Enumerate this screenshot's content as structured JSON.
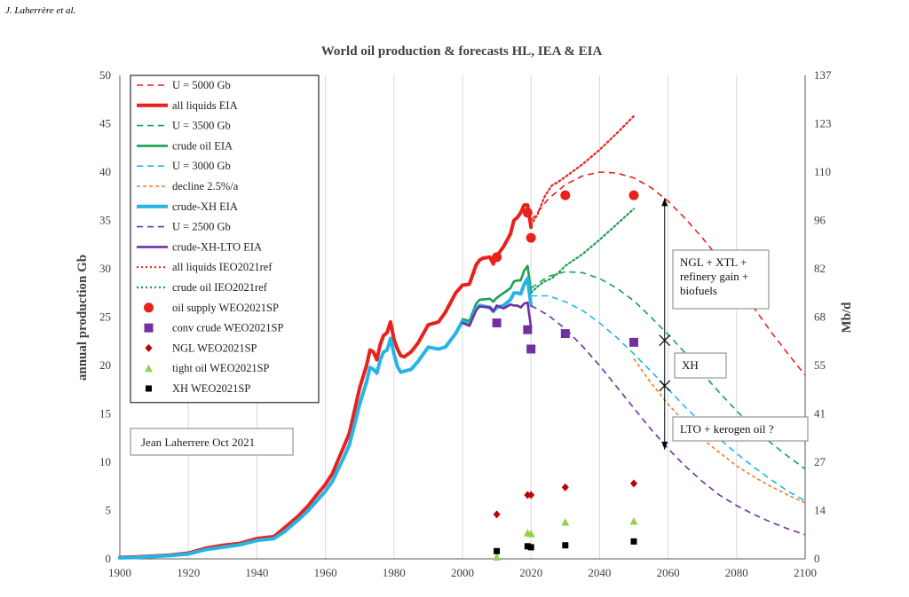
{
  "header": {
    "citation": "J. Laherrère et al."
  },
  "chart_data": {
    "type": "line",
    "title": "World oil production & forecasts HL, IEA & EIA",
    "xlabel": "",
    "ylabel": "annual production Gb",
    "y2label": "Mb/d",
    "xlim": [
      1900,
      2100
    ],
    "ylim": [
      0,
      50
    ],
    "x_ticks": [
      1900,
      1920,
      1940,
      1960,
      1980,
      2000,
      2020,
      2040,
      2060,
      2080,
      2100
    ],
    "y_ticks": [
      0,
      5,
      10,
      15,
      20,
      25,
      30,
      35,
      40,
      45,
      50
    ],
    "y2_ticks": [
      0,
      14,
      27,
      41,
      55,
      68,
      82,
      96,
      110,
      123,
      137
    ],
    "grid": "vertical",
    "legend": [
      {
        "label": "U = 5000 Gb",
        "style": "dash",
        "color": "#e8211d"
      },
      {
        "label": "all liquids EIA",
        "style": "thick",
        "color": "#e8211d"
      },
      {
        "label": "U = 3500 Gb",
        "style": "dash",
        "color": "#1aa150"
      },
      {
        "label": "crude oil  EIA",
        "style": "solid",
        "color": "#1aa150"
      },
      {
        "label": "U = 3000 Gb",
        "style": "dash",
        "color": "#26b4e8"
      },
      {
        "label": "decline 2.5%/a",
        "style": "dash-short",
        "color": "#ee7d2a"
      },
      {
        "label": "crude-XH EIA",
        "style": "thick",
        "color": "#26b4e8"
      },
      {
        "label": "U = 2500 Gb",
        "style": "dash",
        "color": "#7030a0"
      },
      {
        "label": "crude-XH-LTO EIA",
        "style": "solid",
        "color": "#7030a0"
      },
      {
        "label": "all liquids IEO2021ref",
        "style": "dot",
        "color": "#e8211d"
      },
      {
        "label": "crude oil IEO2021ref",
        "style": "dot",
        "color": "#1aa150"
      },
      {
        "label": "oil supply WEO2021SP",
        "style": "circle",
        "color": "#e8211d"
      },
      {
        "label": "conv crude WEO2021SP",
        "style": "square",
        "color": "#7030a0"
      },
      {
        "label": "NGL WEO2021SP",
        "style": "diamond",
        "color": "#c00000"
      },
      {
        "label": "tight oil WEO2021SP",
        "style": "triangle",
        "color": "#92d050"
      },
      {
        "label": "XH WEO2021SP",
        "style": "square-small",
        "color": "#000000"
      }
    ],
    "credit": "Jean Laherrere Oct 2021",
    "annotations": [
      {
        "text": [
          "NGL + XTL +",
          "refinery gain +",
          "biofuels"
        ]
      },
      {
        "text": [
          "XH"
        ]
      },
      {
        "text": [
          "LTO + kerogen oil ?"
        ]
      }
    ],
    "series": [
      {
        "name": "all liquids EIA",
        "style": "thick",
        "color": "#e8211d",
        "x": [
          1900,
          1905,
          1910,
          1915,
          1920,
          1925,
          1930,
          1935,
          1940,
          1945,
          1948,
          1950,
          1952,
          1955,
          1957,
          1960,
          1962,
          1965,
          1967,
          1970,
          1972,
          1973,
          1974,
          1975,
          1976,
          1977,
          1978,
          1979,
          1980,
          1981,
          1982,
          1983,
          1985,
          1987,
          1990,
          1993,
          1995,
          1998,
          2000,
          2002,
          2004,
          2005,
          2006,
          2008,
          2009,
          2010,
          2012,
          2014,
          2015,
          2016,
          2017,
          2018,
          2019,
          2020
        ],
        "y": [
          0.15,
          0.2,
          0.3,
          0.4,
          0.6,
          1.1,
          1.4,
          1.6,
          2.1,
          2.3,
          3.2,
          3.8,
          4.4,
          5.5,
          6.4,
          7.7,
          8.8,
          11.3,
          13.0,
          17.7,
          20.0,
          21.6,
          21.4,
          20.6,
          22.2,
          23.1,
          23.4,
          24.5,
          22.7,
          21.7,
          21.0,
          20.9,
          21.4,
          22.3,
          24.2,
          24.5,
          25.5,
          27.5,
          28.3,
          28.4,
          30.4,
          30.9,
          31.1,
          31.2,
          30.5,
          31.3,
          32.3,
          33.6,
          35.0,
          35.3,
          35.8,
          36.6,
          36.6,
          34.3
        ]
      },
      {
        "name": "crude oil  EIA",
        "style": "solid",
        "color": "#1aa150",
        "x": [
          2000,
          2002,
          2004,
          2005,
          2008,
          2009,
          2010,
          2012,
          2014,
          2015,
          2016,
          2017,
          2018,
          2019,
          2020
        ],
        "y": [
          24.8,
          24.6,
          26.4,
          26.8,
          26.9,
          26.6,
          27.0,
          27.5,
          28.0,
          28.7,
          28.8,
          28.8,
          29.8,
          30.3,
          27.6
        ]
      },
      {
        "name": "crude-XH EIA",
        "style": "thick",
        "color": "#26b4e8",
        "x": [
          1900,
          1905,
          1910,
          1915,
          1920,
          1925,
          1930,
          1935,
          1940,
          1945,
          1948,
          1950,
          1952,
          1955,
          1957,
          1960,
          1962,
          1965,
          1967,
          1970,
          1972,
          1973,
          1974,
          1975,
          1976,
          1977,
          1978,
          1979,
          1980,
          1981,
          1982,
          1983,
          1985,
          1987,
          1990,
          1993,
          1995,
          1998,
          2000,
          2002,
          2004,
          2005,
          2008,
          2009,
          2010,
          2012,
          2014,
          2015,
          2016,
          2017,
          2018,
          2019,
          2020
        ],
        "y": [
          0.1,
          0.15,
          0.25,
          0.35,
          0.5,
          0.95,
          1.2,
          1.45,
          1.9,
          2.1,
          2.8,
          3.4,
          4.0,
          5.0,
          5.8,
          7.0,
          8.0,
          10.2,
          11.8,
          16.0,
          18.3,
          19.8,
          19.6,
          19.2,
          20.6,
          21.4,
          21.6,
          22.8,
          21.2,
          19.9,
          19.3,
          19.4,
          19.6,
          20.4,
          21.9,
          21.7,
          21.9,
          23.3,
          24.6,
          24.2,
          25.9,
          26.2,
          26.0,
          25.6,
          26.0,
          26.2,
          26.8,
          27.5,
          27.5,
          27.4,
          28.4,
          29.0,
          26.2
        ]
      },
      {
        "name": "crude-XH-LTO EIA",
        "style": "solid",
        "color": "#7030a0",
        "x": [
          2000,
          2002,
          2004,
          2005,
          2008,
          2009,
          2010,
          2012,
          2014,
          2015,
          2016,
          2017,
          2018,
          2019,
          2020
        ],
        "y": [
          24.4,
          24.1,
          25.7,
          26.1,
          26.0,
          25.6,
          26.2,
          25.9,
          26.3,
          26.2,
          26.2,
          26.0,
          26.4,
          26.5,
          23.9
        ]
      },
      {
        "name": "all liquids IEO2021ref",
        "style": "dot",
        "color": "#e8211d",
        "x": [
          2020,
          2022,
          2024,
          2026,
          2028,
          2030,
          2035,
          2040,
          2045,
          2050
        ],
        "y": [
          34.5,
          35.7,
          37.5,
          38.6,
          39.0,
          39.5,
          40.8,
          42.3,
          44.0,
          45.8
        ]
      },
      {
        "name": "crude oil IEO2021ref",
        "style": "dot",
        "color": "#1aa150",
        "x": [
          2020,
          2022,
          2024,
          2026,
          2028,
          2030,
          2035,
          2040,
          2045,
          2050
        ],
        "y": [
          27.5,
          28.2,
          28.7,
          29.0,
          29.6,
          30.3,
          31.5,
          33.0,
          34.6,
          36.2
        ]
      },
      {
        "name": "U = 5000 Gb",
        "style": "dash",
        "color": "#e8211d",
        "x": [
          2020,
          2025,
          2030,
          2035,
          2040,
          2045,
          2050,
          2055,
          2060,
          2065,
          2070,
          2075,
          2080,
          2085,
          2090,
          2095,
          2100
        ],
        "y": [
          35.0,
          37.2,
          38.7,
          39.6,
          40.0,
          39.9,
          39.4,
          38.4,
          37.0,
          35.2,
          33.2,
          31.0,
          28.5,
          26.0,
          23.5,
          21.2,
          19.0
        ]
      },
      {
        "name": "U = 3500 Gb",
        "style": "dash",
        "color": "#1aa150",
        "x": [
          2020,
          2025,
          2030,
          2035,
          2040,
          2045,
          2050,
          2055,
          2060,
          2065,
          2070,
          2075,
          2080,
          2085,
          2090,
          2095,
          2100
        ],
        "y": [
          28.0,
          29.2,
          29.7,
          29.6,
          29.0,
          28.0,
          26.7,
          25.0,
          23.2,
          21.3,
          19.2,
          17.2,
          15.3,
          13.6,
          12.0,
          10.6,
          9.3
        ]
      },
      {
        "name": "U = 3000 Gb",
        "style": "dash",
        "color": "#26b4e8",
        "x": [
          2020,
          2025,
          2030,
          2035,
          2040,
          2045,
          2050,
          2055,
          2060,
          2065,
          2070,
          2075,
          2080,
          2085,
          2090,
          2095,
          2100
        ],
        "y": [
          27.2,
          27.2,
          26.6,
          25.7,
          24.4,
          22.9,
          21.2,
          19.4,
          17.6,
          15.7,
          14.0,
          12.4,
          10.9,
          9.5,
          8.2,
          7.0,
          6.0
        ]
      },
      {
        "name": "U = 2500 Gb",
        "style": "dash",
        "color": "#7030a0",
        "x": [
          2020,
          2025,
          2030,
          2035,
          2040,
          2045,
          2050,
          2055,
          2060,
          2065,
          2070,
          2075,
          2080,
          2085,
          2090,
          2095,
          2100
        ],
        "y": [
          26.2,
          25.2,
          23.8,
          22.0,
          20.0,
          17.8,
          15.6,
          13.4,
          11.4,
          9.6,
          8.0,
          6.6,
          5.5,
          4.6,
          3.8,
          3.1,
          2.5
        ]
      },
      {
        "name": "decline 2.5%/a",
        "style": "dash-short",
        "color": "#ee7d2a",
        "x": [
          2050,
          2055,
          2060,
          2065,
          2070,
          2075,
          2080,
          2085,
          2090,
          2095,
          2100
        ],
        "y": [
          20.7,
          18.2,
          16.0,
          14.1,
          12.4,
          11.0,
          9.6,
          8.5,
          7.5,
          6.6,
          5.8
        ]
      }
    ],
    "points": [
      {
        "name": "oil supply WEO2021SP",
        "marker": "circle",
        "color": "#e8211d",
        "x": [
          2010,
          2019,
          2020,
          2030,
          2050
        ],
        "y": [
          31.2,
          35.8,
          33.2,
          37.6,
          37.6
        ]
      },
      {
        "name": "conv crude WEO2021SP",
        "marker": "square",
        "color": "#7030a0",
        "x": [
          2010,
          2019,
          2020,
          2030,
          2050
        ],
        "y": [
          24.4,
          23.7,
          21.7,
          23.3,
          22.4
        ]
      },
      {
        "name": "NGL WEO2021SP",
        "marker": "diamond",
        "color": "#c00000",
        "x": [
          2010,
          2019,
          2020,
          2030,
          2050
        ],
        "y": [
          4.6,
          6.6,
          6.6,
          7.4,
          7.8
        ]
      },
      {
        "name": "tight oil WEO2021SP",
        "marker": "triangle",
        "color": "#92d050",
        "x": [
          2010,
          2019,
          2020,
          2030,
          2050
        ],
        "y": [
          0.2,
          2.7,
          2.6,
          3.8,
          3.9
        ]
      },
      {
        "name": "XH WEO2021SP",
        "marker": "square-small",
        "color": "#000000",
        "x": [
          2010,
          2019,
          2020,
          2030,
          2050
        ],
        "y": [
          0.8,
          1.3,
          1.2,
          1.4,
          1.8
        ]
      }
    ]
  }
}
